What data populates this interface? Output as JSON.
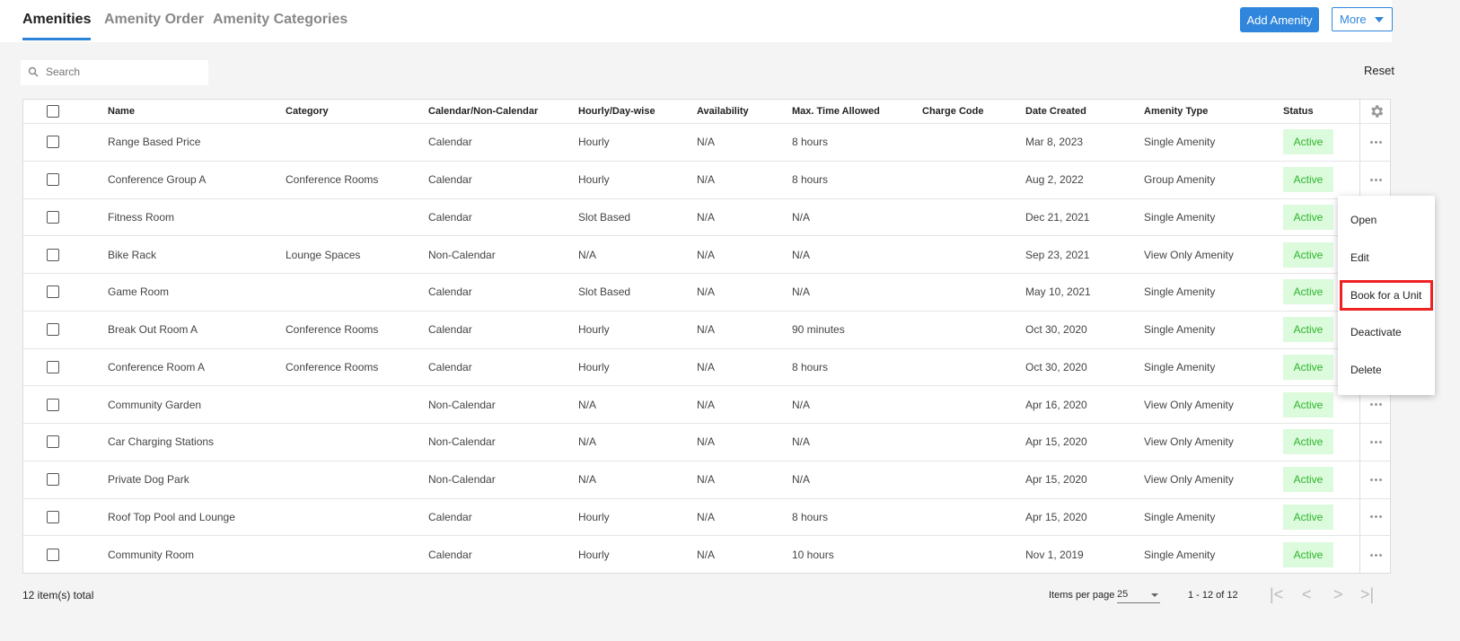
{
  "tabs": [
    {
      "label": "Amenities",
      "active": true
    },
    {
      "label": "Amenity Order"
    },
    {
      "label": "Amenity Categories"
    }
  ],
  "toolbar": {
    "add_label": "Add Amenity",
    "more_label": "More",
    "reset_label": "Reset",
    "search_placeholder": "Search"
  },
  "table": {
    "columns": [
      "Name",
      "Category",
      "Calendar/Non-Calendar",
      "Hourly/Day-wise",
      "Availability",
      "Max. Time Allowed",
      "Charge Code",
      "Date Created",
      "Amenity Type",
      "Status"
    ],
    "rows": [
      [
        "Range Based Price",
        "",
        "Calendar",
        "Hourly",
        "N/A",
        "8 hours",
        "",
        "Mar 8, 2023",
        "Single Amenity",
        "Active"
      ],
      [
        "Conference Group A",
        "Conference Rooms",
        "Calendar",
        "Hourly",
        "N/A",
        "8 hours",
        "",
        "Aug 2, 2022",
        "Group Amenity",
        "Active"
      ],
      [
        "Fitness Room",
        "",
        "Calendar",
        "Slot Based",
        "N/A",
        "N/A",
        "",
        "Dec 21, 2021",
        "Single Amenity",
        "Active"
      ],
      [
        "Bike Rack",
        "Lounge Spaces",
        "Non-Calendar",
        "N/A",
        "N/A",
        "N/A",
        "",
        "Sep 23, 2021",
        "View Only Amenity",
        "Active"
      ],
      [
        "Game Room",
        "",
        "Calendar",
        "Slot Based",
        "N/A",
        "N/A",
        "",
        "May 10, 2021",
        "Single Amenity",
        "Active"
      ],
      [
        "Break Out Room A",
        "Conference Rooms",
        "Calendar",
        "Hourly",
        "N/A",
        "90 minutes",
        "",
        "Oct 30, 2020",
        "Single Amenity",
        "Active"
      ],
      [
        "Conference Room A",
        "Conference Rooms",
        "Calendar",
        "Hourly",
        "N/A",
        "8 hours",
        "",
        "Oct 30, 2020",
        "Single Amenity",
        "Active"
      ],
      [
        "Community Garden",
        "",
        "Non-Calendar",
        "N/A",
        "N/A",
        "N/A",
        "",
        "Apr 16, 2020",
        "View Only Amenity",
        "Active"
      ],
      [
        "Car Charging Stations",
        "",
        "Non-Calendar",
        "N/A",
        "N/A",
        "N/A",
        "",
        "Apr 15, 2020",
        "View Only Amenity",
        "Active"
      ],
      [
        "Private Dog Park",
        "",
        "Non-Calendar",
        "N/A",
        "N/A",
        "N/A",
        "",
        "Apr 15, 2020",
        "View Only Amenity",
        "Active"
      ],
      [
        "Roof Top Pool and Lounge",
        "",
        "Calendar",
        "Hourly",
        "N/A",
        "8 hours",
        "",
        "Apr 15, 2020",
        "Single Amenity",
        "Active"
      ],
      [
        "Community Room",
        "",
        "Calendar",
        "Hourly",
        "N/A",
        "10 hours",
        "",
        "Nov 1, 2019",
        "Single Amenity",
        "Active"
      ]
    ]
  },
  "context_menu": {
    "items": [
      "Open",
      "Edit",
      "Book for a Unit",
      "Deactivate",
      "Delete"
    ],
    "highlighted": "Book for a Unit"
  },
  "footer": {
    "total": "12 item(s) total",
    "items_per_page_label": "Items per page",
    "items_per_page": "25",
    "range": "1 - 12 of 12"
  },
  "colors": {
    "accent": "#2f86dc",
    "active_bg": "#dcfadc",
    "active_text": "#2bb52b",
    "highlight": "#ee2222"
  }
}
